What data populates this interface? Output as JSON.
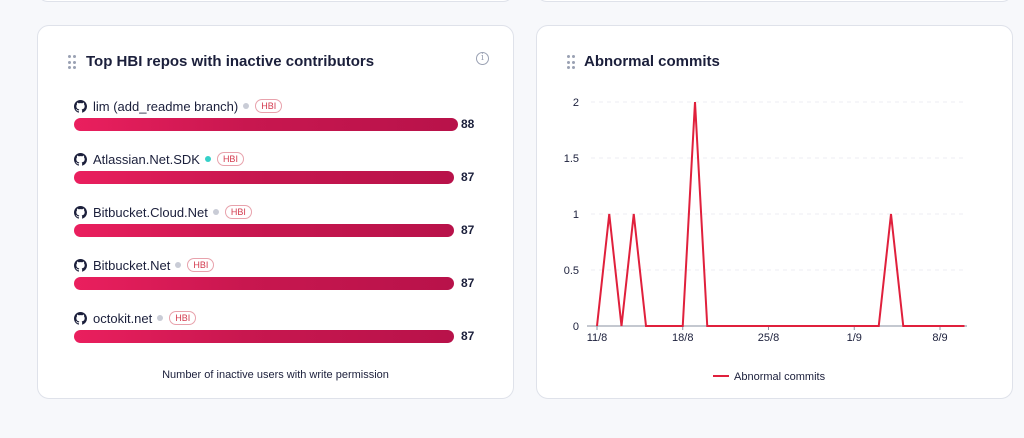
{
  "left_card": {
    "title": "Top HBI repos with inactive contributors",
    "footer": "Number of inactive users with write permission",
    "max_value": 88,
    "repos": [
      {
        "name": "lim (add_readme branch)",
        "tag": "HBI",
        "value": 88,
        "dot_color": "#c9ccd6"
      },
      {
        "name": "Atlassian.Net.SDK",
        "tag": "HBI",
        "value": 87,
        "dot_color": "#35d0c8"
      },
      {
        "name": "Bitbucket.Cloud.Net",
        "tag": "HBI",
        "value": 87,
        "dot_color": "#c9ccd6"
      },
      {
        "name": "Bitbucket.Net",
        "tag": "HBI",
        "value": 87,
        "dot_color": "#c9ccd6"
      },
      {
        "name": "octokit.net",
        "tag": "HBI",
        "value": 87,
        "dot_color": "#c9ccd6"
      }
    ]
  },
  "right_card": {
    "title": "Abnormal commits",
    "chart_data": {
      "type": "line",
      "x_tick_labels": [
        "11/8",
        "18/8",
        "25/8",
        "1/9",
        "8/9"
      ],
      "y_tick_labels": [
        "0",
        "0.5",
        "1",
        "1.5",
        "2"
      ],
      "ylim": [
        0,
        2
      ],
      "grid": true,
      "legend": "bottom",
      "series": [
        {
          "name": "Abnormal commits",
          "color": "#e0203c",
          "x": [
            "11/8",
            "12/8",
            "13/8",
            "14/8",
            "15/8",
            "16/8",
            "17/8",
            "18/8",
            "19/8",
            "20/8",
            "21/8",
            "22/8",
            "23/8",
            "24/8",
            "25/8",
            "26/8",
            "27/8",
            "28/8",
            "29/8",
            "30/8",
            "31/8",
            "1/9",
            "2/9",
            "3/9",
            "4/9",
            "5/9",
            "6/9",
            "7/9",
            "8/9",
            "9/9",
            "10/9"
          ],
          "values": [
            0,
            1,
            0,
            1,
            0,
            0,
            0,
            0,
            2,
            0,
            0,
            0,
            0,
            0,
            0,
            0,
            0,
            0,
            0,
            0,
            0,
            0,
            0,
            0,
            1,
            0,
            0,
            0,
            0,
            0,
            0
          ]
        }
      ]
    }
  }
}
